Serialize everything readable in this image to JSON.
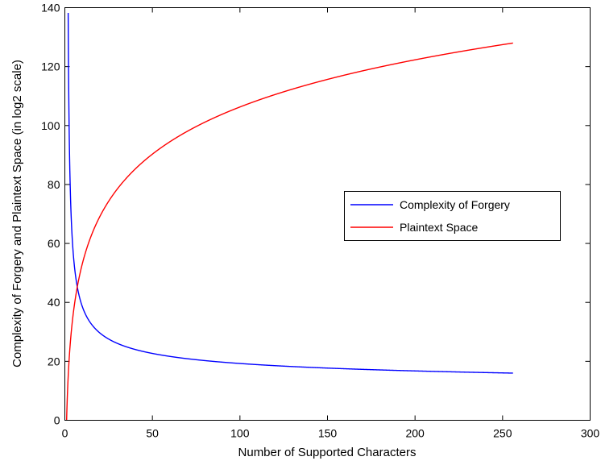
{
  "chart_data": {
    "type": "line",
    "title": "",
    "xlabel": "Number of Supported Characters",
    "ylabel": "Complexity of Forgery and Plaintext Space (in log2 scale)",
    "xlim": [
      0,
      300
    ],
    "ylim": [
      0,
      140
    ],
    "xticks": [
      0,
      50,
      100,
      150,
      200,
      250,
      300
    ],
    "yticks": [
      0,
      20,
      40,
      60,
      80,
      100,
      120,
      140
    ],
    "grid": false,
    "legend_position": "center-right",
    "series": [
      {
        "name": "Complexity of Forgery",
        "color": "#0000ff",
        "formula": "128 / log2(n)",
        "x": [
          2,
          3,
          4,
          5,
          6,
          8,
          10,
          12,
          16,
          20,
          25,
          32,
          40,
          50,
          64,
          80,
          100,
          128,
          150,
          175,
          200,
          225,
          256
        ],
        "values": [
          128,
          80.76,
          64,
          55.13,
          49.52,
          42.67,
          38.53,
          35.71,
          32,
          29.62,
          27.56,
          25.6,
          24.05,
          22.68,
          21.33,
          20.25,
          19.27,
          18.29,
          17.71,
          17.18,
          16.75,
          16.38,
          16
        ]
      },
      {
        "name": "Plaintext Space",
        "color": "#ff0000",
        "x": [
          1,
          2,
          3,
          4,
          6,
          8,
          10,
          13,
          16,
          20,
          25,
          32,
          40,
          50,
          64,
          80,
          100,
          128,
          150,
          175,
          200,
          225,
          256
        ],
        "values": [
          0,
          16,
          25.4,
          32,
          41.4,
          48,
          53.2,
          59.2,
          64,
          69.2,
          74.3,
          80,
          85.2,
          90.3,
          96,
          101.2,
          106.3,
          112,
          115.7,
          119.2,
          122.3,
          125,
          128
        ]
      }
    ]
  }
}
